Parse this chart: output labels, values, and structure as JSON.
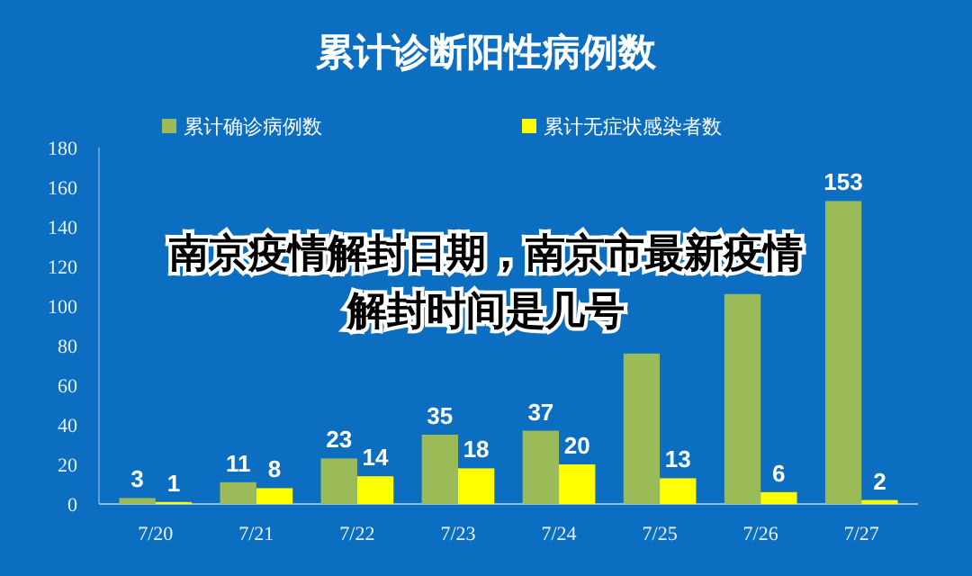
{
  "chart_data": {
    "type": "bar",
    "title": "累计诊断阳性病例数",
    "categories": [
      "7/20",
      "7/21",
      "7/22",
      "7/23",
      "7/24",
      "7/25",
      "7/26",
      "7/27"
    ],
    "series": [
      {
        "name": "累计确诊病例数",
        "color": "#9bbb59",
        "values": [
          3,
          11,
          23,
          35,
          37,
          76,
          106,
          153
        ],
        "value_labels": [
          "3",
          "11",
          "23",
          "35",
          "37",
          null,
          null,
          "153"
        ]
      },
      {
        "name": "累计无症状感染者数",
        "color": "#ffff00",
        "values": [
          1,
          8,
          14,
          18,
          20,
          13,
          6,
          2
        ],
        "value_labels": [
          "1",
          "8",
          "14",
          "18",
          "20",
          "13",
          "6",
          "2"
        ]
      }
    ],
    "ylim": [
      0,
      180
    ],
    "yticks": [
      0,
      20,
      40,
      60,
      80,
      100,
      120,
      140,
      160,
      180
    ],
    "grid": false,
    "legend": "top",
    "annotations": [
      "南京疫情解封日期，南京市最新疫情解封时间是几号"
    ]
  }
}
